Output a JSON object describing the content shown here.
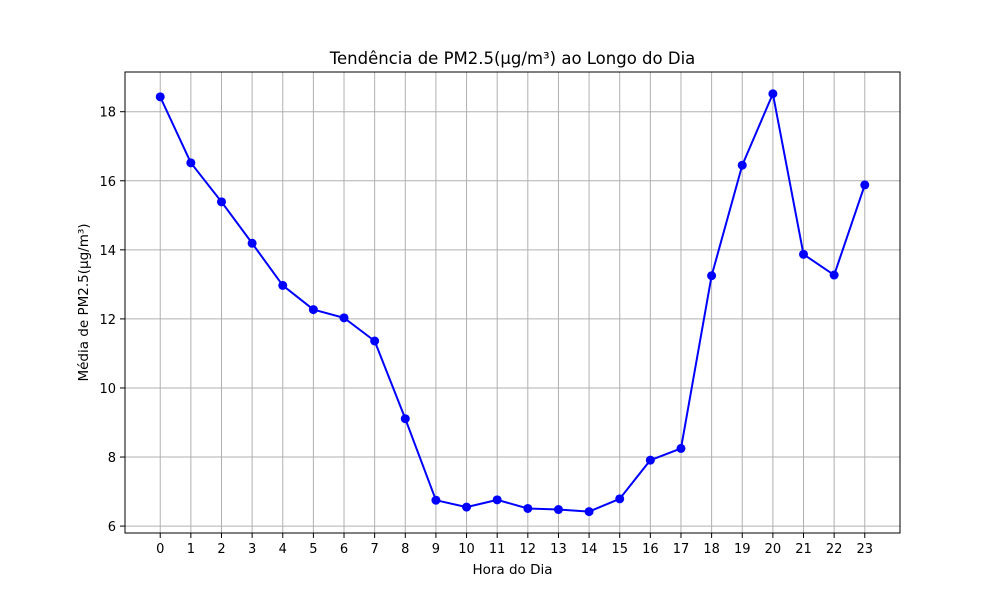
{
  "chart_data": {
    "type": "line",
    "title": "Tendência de PM2.5(µg/m³) ao Longo do Dia",
    "xlabel": "Hora do Dia",
    "ylabel": "Média de PM2.5(µg/m³)",
    "x": [
      0,
      1,
      2,
      3,
      4,
      5,
      6,
      7,
      8,
      9,
      10,
      11,
      12,
      13,
      14,
      15,
      16,
      17,
      18,
      19,
      20,
      21,
      22,
      23
    ],
    "x_tick_labels": [
      "0",
      "1",
      "2",
      "3",
      "4",
      "5",
      "6",
      "7",
      "8",
      "9",
      "10",
      "11",
      "12",
      "13",
      "14",
      "15",
      "16",
      "17",
      "18",
      "19",
      "20",
      "21",
      "22",
      "23"
    ],
    "y_ticks": [
      6,
      8,
      10,
      12,
      14,
      16,
      18
    ],
    "y_tick_labels": [
      "6",
      "8",
      "10",
      "12",
      "14",
      "16",
      "18"
    ],
    "xlim": [
      -1.15,
      24.15
    ],
    "ylim": [
      5.8,
      19.15
    ],
    "grid": true,
    "series": [
      {
        "values": [
          18.43,
          16.52,
          15.39,
          14.19,
          12.97,
          12.27,
          12.03,
          11.36,
          9.11,
          6.75,
          6.55,
          6.76,
          6.51,
          6.48,
          6.42,
          6.79,
          7.91,
          8.25,
          13.25,
          16.45,
          18.52,
          13.87,
          13.27,
          15.88
        ],
        "color": "#0000ff",
        "marker": "circle"
      }
    ]
  }
}
